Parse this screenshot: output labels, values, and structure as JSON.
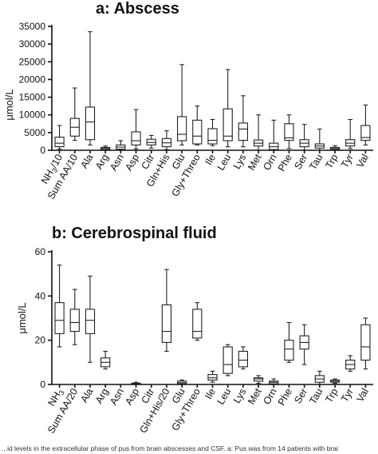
{
  "caption": "...id levels in the extracellular phase of pus from brain abscesses and CSF. a: Pus was from 14 patients with brai",
  "chart_data": [
    {
      "type": "box",
      "title": "a: Abscess",
      "ylabel": "μmol/L",
      "ylim": [
        0,
        35000
      ],
      "yticks": [
        0,
        5000,
        10000,
        15000,
        20000,
        25000,
        30000,
        35000
      ],
      "categories": [
        "NH3/10",
        "Sum AA/10",
        "Ala",
        "Arg",
        "Asn",
        "Asp",
        "Citr",
        "Gln+His",
        "Glu",
        "Gly+Threo",
        "Ile",
        "Leu",
        "Lys",
        "Met",
        "Orn",
        "Phe",
        "Ser",
        "Tau",
        "Trp",
        "Tyr",
        "Val"
      ],
      "boxes": [
        {
          "min": 300,
          "q1": 1000,
          "median": 2000,
          "q3": 3700,
          "max": 7000
        },
        {
          "min": 2800,
          "q1": 4000,
          "median": 6500,
          "q3": 9000,
          "max": 17600
        },
        {
          "min": 1500,
          "q1": 3000,
          "median": 8000,
          "q3": 12200,
          "max": 33500
        },
        {
          "min": 0,
          "q1": 200,
          "median": 500,
          "q3": 800,
          "max": 1200
        },
        {
          "min": 100,
          "q1": 300,
          "median": 900,
          "q3": 1500,
          "max": 2700
        },
        {
          "min": 400,
          "q1": 1500,
          "median": 2700,
          "q3": 5200,
          "max": 11500
        },
        {
          "min": 600,
          "q1": 1500,
          "median": 2200,
          "q3": 3100,
          "max": 4200
        },
        {
          "min": 200,
          "q1": 1000,
          "median": 2100,
          "q3": 3300,
          "max": 5500
        },
        {
          "min": 1500,
          "q1": 2700,
          "median": 4500,
          "q3": 9500,
          "max": 24200
        },
        {
          "min": 1500,
          "q1": 1800,
          "median": 4000,
          "q3": 8500,
          "max": 12500
        },
        {
          "min": 1300,
          "q1": 1800,
          "median": 2800,
          "q3": 6100,
          "max": 8700
        },
        {
          "min": 1000,
          "q1": 2700,
          "median": 4000,
          "q3": 11700,
          "max": 22800
        },
        {
          "min": 1000,
          "q1": 2800,
          "median": 6000,
          "q3": 7700,
          "max": 15400
        },
        {
          "min": 0,
          "q1": 1200,
          "median": 2000,
          "q3": 2900,
          "max": 10000
        },
        {
          "min": 0,
          "q1": 200,
          "median": 1000,
          "q3": 2000,
          "max": 8500
        },
        {
          "min": 500,
          "q1": 2800,
          "median": 3500,
          "q3": 7500,
          "max": 10000
        },
        {
          "min": 0,
          "q1": 1000,
          "median": 2000,
          "q3": 3000,
          "max": 7300
        },
        {
          "min": 0,
          "q1": 600,
          "median": 1200,
          "q3": 1800,
          "max": 6000
        },
        {
          "min": 0,
          "q1": 200,
          "median": 500,
          "q3": 800,
          "max": 1300
        },
        {
          "min": 500,
          "q1": 1200,
          "median": 2000,
          "q3": 3000,
          "max": 8700
        },
        {
          "min": 1500,
          "q1": 2800,
          "median": 3600,
          "q3": 7000,
          "max": 12800
        }
      ]
    },
    {
      "type": "box",
      "title": "b: Cerebrospinal fluid",
      "ylabel": "μmol/L",
      "ylim": [
        0,
        60
      ],
      "yticks": [
        0,
        20,
        40,
        60
      ],
      "categories": [
        "NH3",
        "Sum AA/20",
        "Ala",
        "Arg",
        "Asn",
        "Asp",
        "Citr",
        "Gln+His/20",
        "Glu",
        "Gly+Threo",
        "Ile",
        "Leu",
        "Lys",
        "Met",
        "Orn",
        "Phe",
        "Ser",
        "Tau",
        "Trp",
        "Tyr",
        "Val"
      ],
      "boxes": [
        {
          "min": 17,
          "q1": 23,
          "median": 29,
          "q3": 37,
          "max": 54
        },
        {
          "min": 18,
          "q1": 24,
          "median": 28,
          "q3": 34,
          "max": 43
        },
        {
          "min": 10,
          "q1": 23,
          "median": 29,
          "q3": 34,
          "max": 49
        },
        {
          "min": 7,
          "q1": 8,
          "median": 10,
          "q3": 12,
          "max": 15
        },
        null,
        {
          "min": 0,
          "q1": 0.2,
          "median": 0.4,
          "q3": 0.6,
          "max": 1
        },
        null,
        {
          "min": 15,
          "q1": 19,
          "median": 24,
          "q3": 36,
          "max": 52
        },
        {
          "min": 0,
          "q1": 0.3,
          "median": 0.8,
          "q3": 1.5,
          "max": 2
        },
        {
          "min": 20,
          "q1": 21,
          "median": 24,
          "q3": 34,
          "max": 37
        },
        {
          "min": 1,
          "q1": 2,
          "median": 3,
          "q3": 4.5,
          "max": 6
        },
        {
          "min": 4,
          "q1": 5,
          "median": 9,
          "q3": 17,
          "max": 18
        },
        {
          "min": 7,
          "q1": 8,
          "median": 11,
          "q3": 15,
          "max": 17
        },
        {
          "min": 0.5,
          "q1": 1.5,
          "median": 2.5,
          "q3": 3,
          "max": 4
        },
        {
          "min": 0,
          "q1": 0.3,
          "median": 1,
          "q3": 1.5,
          "max": 2.5
        },
        {
          "min": 10,
          "q1": 11,
          "median": 16,
          "q3": 20,
          "max": 28
        },
        {
          "min": 9,
          "q1": 16,
          "median": 19,
          "q3": 22,
          "max": 27
        },
        {
          "min": 0,
          "q1": 1,
          "median": 2.5,
          "q3": 4,
          "max": 6
        },
        {
          "min": 0.5,
          "q1": 1,
          "median": 1.5,
          "q3": 2,
          "max": 2.5
        },
        {
          "min": 6,
          "q1": 7,
          "median": 9,
          "q3": 11,
          "max": 13
        },
        {
          "min": 7,
          "q1": 11,
          "median": 17,
          "q3": 27,
          "max": 30
        }
      ]
    }
  ]
}
